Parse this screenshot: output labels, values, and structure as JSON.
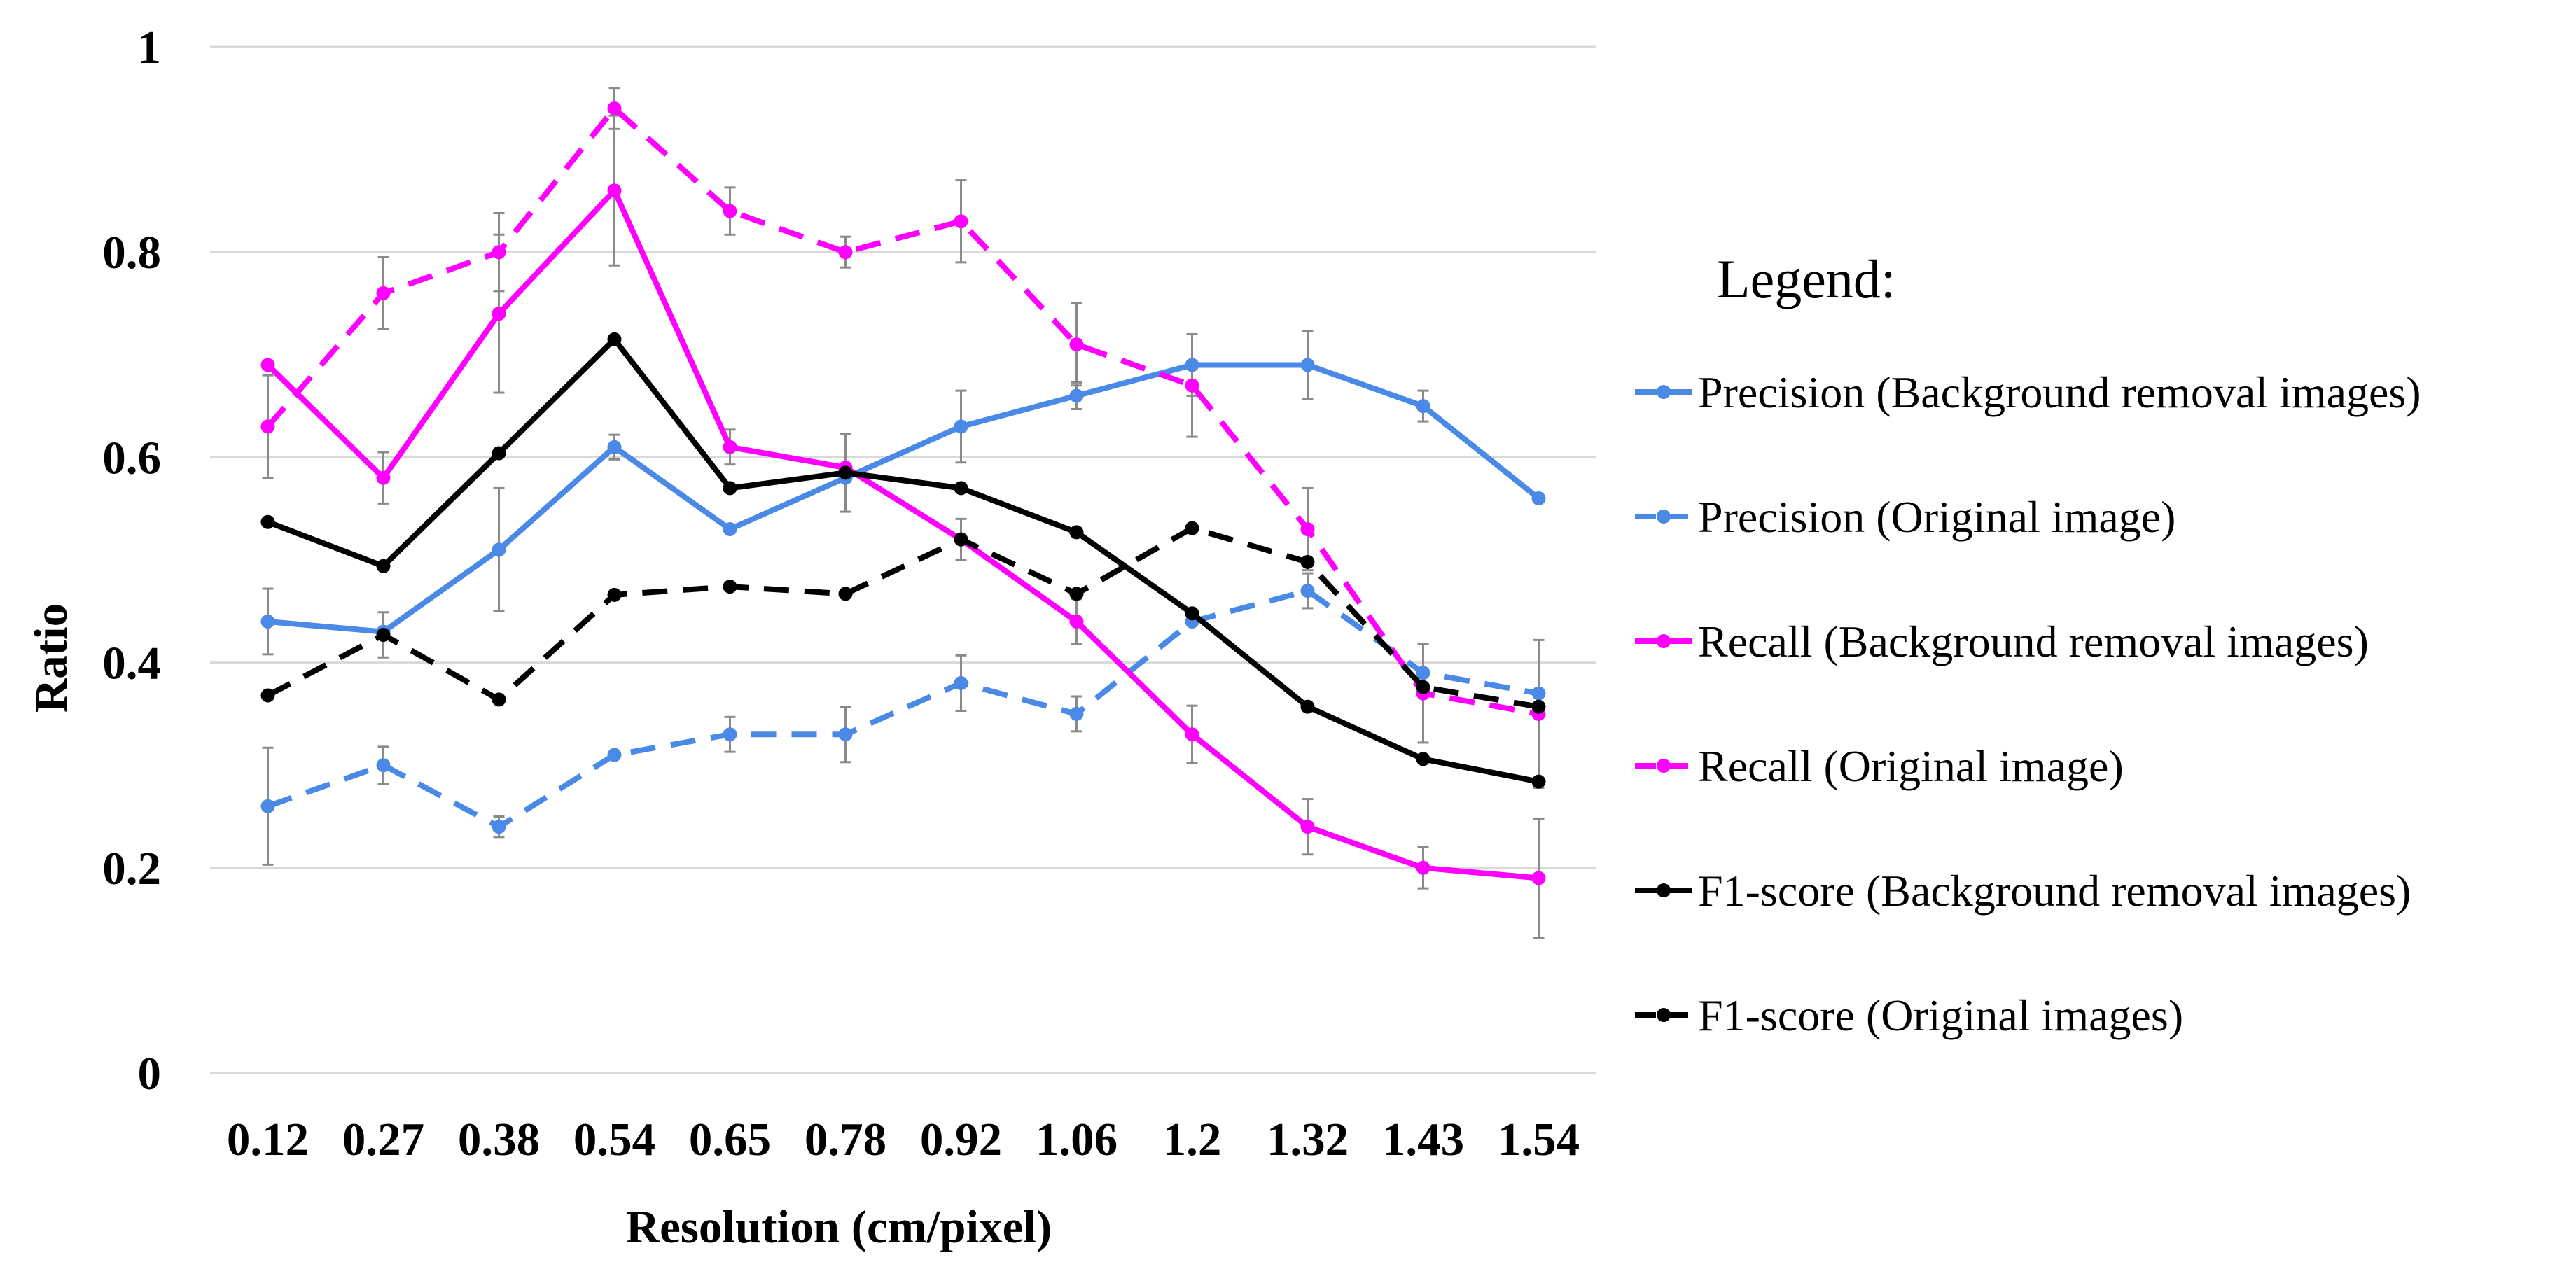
{
  "chart_data": {
    "type": "line",
    "title": "",
    "xlabel": "Resolution (cm/pixel)",
    "ylabel": "Ratio",
    "categories": [
      "0.12",
      "0.27",
      "0.38",
      "0.54",
      "0.65",
      "0.78",
      "0.92",
      "1.06",
      "1.2",
      "1.32",
      "1.43",
      "1.54"
    ],
    "ylim": [
      0,
      1
    ],
    "yticks": [
      "0",
      "0.2",
      "0.4",
      "0.6",
      "0.8",
      "1"
    ],
    "grid": true,
    "legend_title": "Legend:",
    "legend_position": "right",
    "series": [
      {
        "name": "Precision (Background removal images)",
        "color": "#4a8ae6",
        "dashed": false,
        "values": [
          0.44,
          0.43,
          0.51,
          0.61,
          0.53,
          0.58,
          0.63,
          0.66,
          0.69,
          0.69,
          0.65,
          0.56
        ],
        "errors": [
          0.032,
          0,
          0.06,
          0.012,
          0,
          0,
          0.035,
          0.013,
          0.03,
          0.033,
          0.015,
          0
        ]
      },
      {
        "name": "Precision (Original image)",
        "color": "#4a8ae6",
        "dashed": true,
        "values": [
          0.26,
          0.3,
          0.24,
          0.31,
          0.33,
          0.33,
          0.38,
          0.35,
          0.44,
          0.47,
          0.39,
          0.37
        ],
        "errors": [
          0.057,
          0.018,
          0.01,
          0,
          0.017,
          0.027,
          0.027,
          0.017,
          0,
          0.017,
          0,
          0
        ]
      },
      {
        "name": "Recall (Background removal images)",
        "color": "#ff00ff",
        "dashed": false,
        "values": [
          0.69,
          0.58,
          0.74,
          0.86,
          0.61,
          0.59,
          0.52,
          0.44,
          0.33,
          0.24,
          0.2,
          0.19
        ],
        "errors": [
          0,
          0.025,
          0.077,
          0.073,
          0.017,
          0,
          0,
          0.022,
          0.028,
          0.027,
          0.02,
          0.058
        ]
      },
      {
        "name": "Recall (Original image)",
        "color": "#ff00ff",
        "dashed": true,
        "values": [
          0.63,
          0.76,
          0.8,
          0.94,
          0.84,
          0.8,
          0.83,
          0.71,
          0.67,
          0.53,
          0.37,
          0.35
        ],
        "errors": [
          0.05,
          0.035,
          0.038,
          0.02,
          0.023,
          0.015,
          0.04,
          0.04,
          0.05,
          0.04,
          0.048,
          0.072
        ]
      },
      {
        "name": "F1-score (Background removal images)",
        "color": "#000000",
        "dashed": false,
        "values": [
          0.537,
          0.494,
          0.604,
          0.715,
          0.57,
          0.585,
          0.57,
          0.527,
          0.448,
          0.357,
          0.306,
          0.284
        ],
        "errors": [
          0,
          0,
          0,
          0,
          0,
          0.038,
          0,
          0,
          0,
          0,
          0,
          0
        ]
      },
      {
        "name": "F1-score (Original images)",
        "color": "#000000",
        "dashed": true,
        "values": [
          0.368,
          0.427,
          0.364,
          0.466,
          0.474,
          0.467,
          0.52,
          0.467,
          0.531,
          0.498,
          0.376,
          0.357
        ],
        "errors": [
          0,
          0.022,
          0,
          0,
          0,
          0,
          0.02,
          0,
          0,
          0,
          0,
          0
        ]
      }
    ]
  }
}
